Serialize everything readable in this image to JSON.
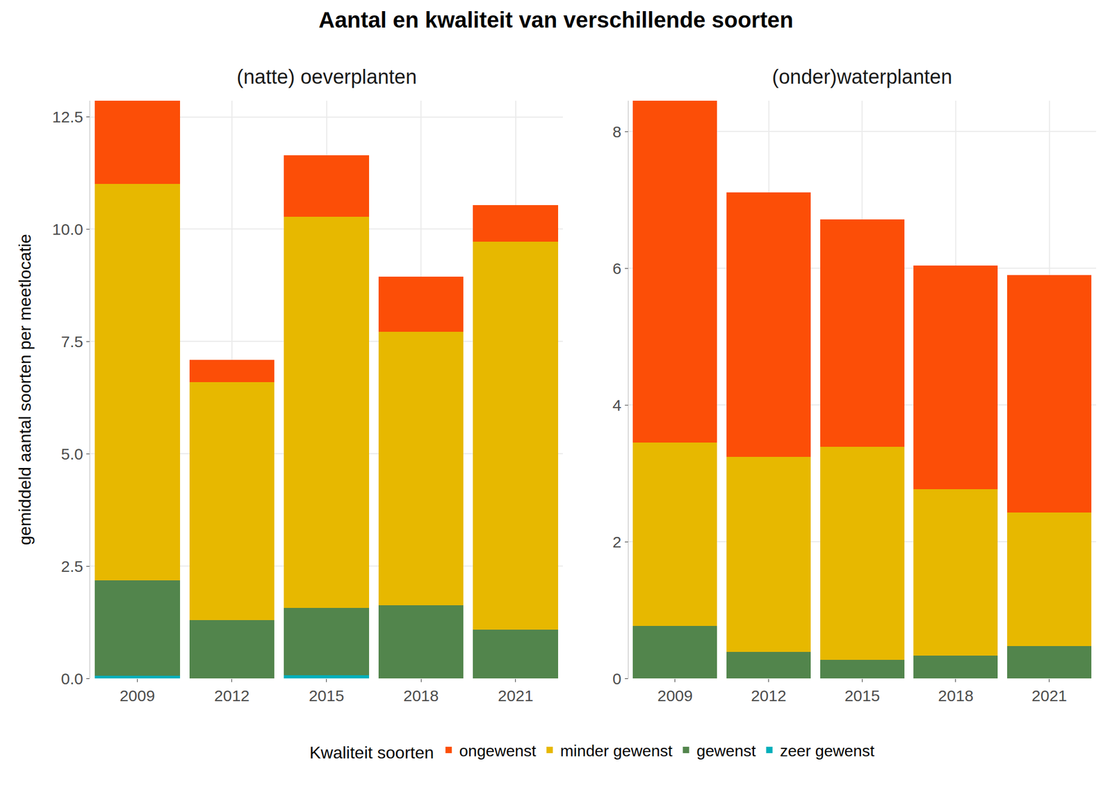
{
  "chart_data": {
    "type": "bar",
    "title": "Aantal en kwaliteit van verschillende soorten",
    "y_label": "gemiddeld aantal soorten per meetlocatie",
    "legend_title": "Kwaliteit soorten",
    "stacked": true,
    "grid": true,
    "legend": "bottom",
    "panels": [
      {
        "subtitle": "(natte) oeverplanten",
        "categories": [
          "2009",
          "2012",
          "2015",
          "2018",
          "2021"
        ],
        "ylim": [
          0,
          12.86
        ],
        "yticks": [
          {
            "value": 0,
            "label": "0.0"
          },
          2.5,
          {
            "value": 5,
            "label": "5.0"
          },
          7.5,
          {
            "value": 10,
            "label": "10.0"
          },
          12.5
        ],
        "series": [
          {
            "name": "zeer gewenst",
            "color": "#00AFBB",
            "values": [
              0.06,
              0,
              0.07,
              0,
              0
            ]
          },
          {
            "name": "gewenst",
            "color": "#52854C",
            "values": [
              2.12,
              1.3,
              1.5,
              1.63,
              1.09
            ]
          },
          {
            "name": "minder gewenst",
            "color": "#E7B800",
            "values": [
              8.83,
              5.3,
              8.71,
              6.09,
              8.63
            ]
          },
          {
            "name": "ongewenst",
            "color": "#FC4E07",
            "values": [
              1.85,
              0.49,
              1.37,
              1.22,
              0.82
            ]
          }
        ]
      },
      {
        "subtitle": "(onder)waterplanten",
        "categories": [
          "2009",
          "2012",
          "2015",
          "2018",
          "2021"
        ],
        "ylim": [
          0,
          8.45
        ],
        "yticks": [
          0,
          2,
          4,
          6,
          8
        ],
        "series": [
          {
            "name": "zeer gewenst",
            "color": "#00AFBB",
            "values": [
              0,
              0,
              0,
              0,
              0
            ]
          },
          {
            "name": "gewenst",
            "color": "#52854C",
            "values": [
              0.77,
              0.39,
              0.27,
              0.33,
              0.47
            ]
          },
          {
            "name": "minder gewenst",
            "color": "#E7B800",
            "values": [
              2.68,
              2.85,
              3.12,
              2.44,
              1.96
            ]
          },
          {
            "name": "ongewenst",
            "color": "#FC4E07",
            "values": [
              5.0,
              3.87,
              3.32,
              3.27,
              3.47
            ]
          }
        ]
      }
    ]
  }
}
